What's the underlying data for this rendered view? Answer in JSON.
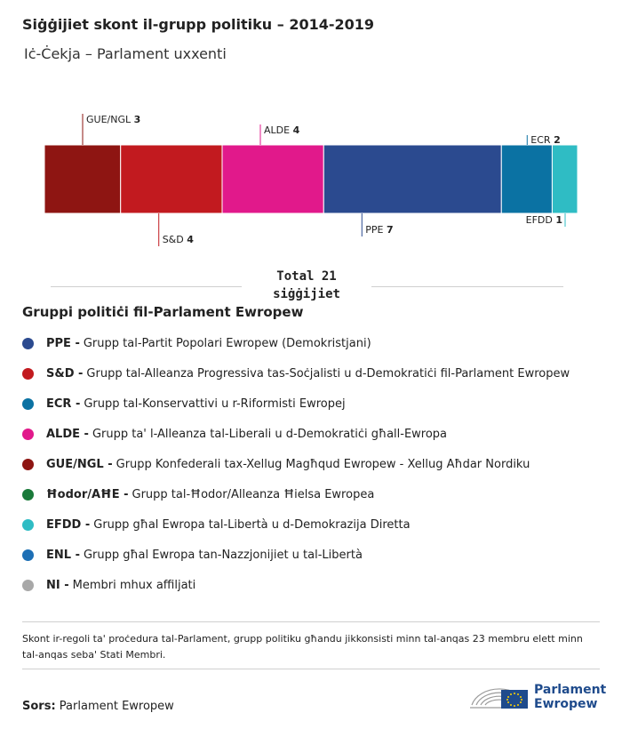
{
  "title": "Siġġijiet skont il-grupp politiku – 2014-2019",
  "subtitle": "Iċ-Ċekja – Parlament uxxenti",
  "chart_data": {
    "type": "bar",
    "stacked": true,
    "categories": [
      "GUE/NGL",
      "S&D",
      "ALDE",
      "PPE",
      "ECR",
      "EFDD"
    ],
    "values": [
      3,
      4,
      4,
      7,
      2,
      1
    ],
    "colors": [
      "#8e1512",
      "#c21a1f",
      "#e1198b",
      "#2b4a8f",
      "#0b72a3",
      "#2fbcc4"
    ],
    "label_side": [
      "top",
      "bottom",
      "top",
      "bottom",
      "top",
      "bottom"
    ],
    "total": 21
  },
  "total_line1": "Total 21",
  "total_line2": "siġġijiet",
  "legend_title": "Gruppi politiċi fil-Parlament Ewropew",
  "legend": [
    {
      "abbr": "PPE -",
      "text": "Grupp tal-Partit Popolari Ewropew (Demokristjani)",
      "color": "#2b4a8f"
    },
    {
      "abbr": "S&D -",
      "text": "Grupp tal-Alleanza Progressiva tas-Soċjalisti u d-Demokratiċi fil-Parlament Ewropew",
      "color": "#c21a1f"
    },
    {
      "abbr": "ECR -",
      "text": "Grupp tal-Konservattivi u r-Riformisti Ewropej",
      "color": "#0b72a3"
    },
    {
      "abbr": "ALDE -",
      "text": "Grupp ta' l-Alleanza tal-Liberali u d-Demokratiċi għall-Ewropa",
      "color": "#e1198b"
    },
    {
      "abbr": "GUE/NGL -",
      "text": "Grupp Konfederali tax-Xellug Magħqud Ewropew - Xellug Aħdar Nordiku",
      "color": "#8e1512"
    },
    {
      "abbr": "Ħodor/AĦE -",
      "text": "Grupp tal-Ħodor/Alleanza Ħielsa Ewropea",
      "color": "#1a7a3a"
    },
    {
      "abbr": "EFDD -",
      "text": "Grupp għal Ewropa tal-Libertà u d-Demokrazija Diretta",
      "color": "#2fbcc4"
    },
    {
      "abbr": "ENL -",
      "text": "Grupp għal Ewropa tan-Nazzjonijiet u tal-Libertà",
      "color": "#1d6fb5"
    },
    {
      "abbr": "NI -",
      "text": "Membri mhux affiljati",
      "color": "#a8a8a8"
    }
  ],
  "note": "Skont ir-regoli ta' proċedura tal-Parlament, grupp politiku għandu jikkonsisti minn tal-anqas 23 membru elett minn tal-anqas seba' Stati Membri.",
  "source_label": "Sors:",
  "source_text": "Parlament Ewropew",
  "logo_line1": "Parlament",
  "logo_line2": "Ewropew"
}
